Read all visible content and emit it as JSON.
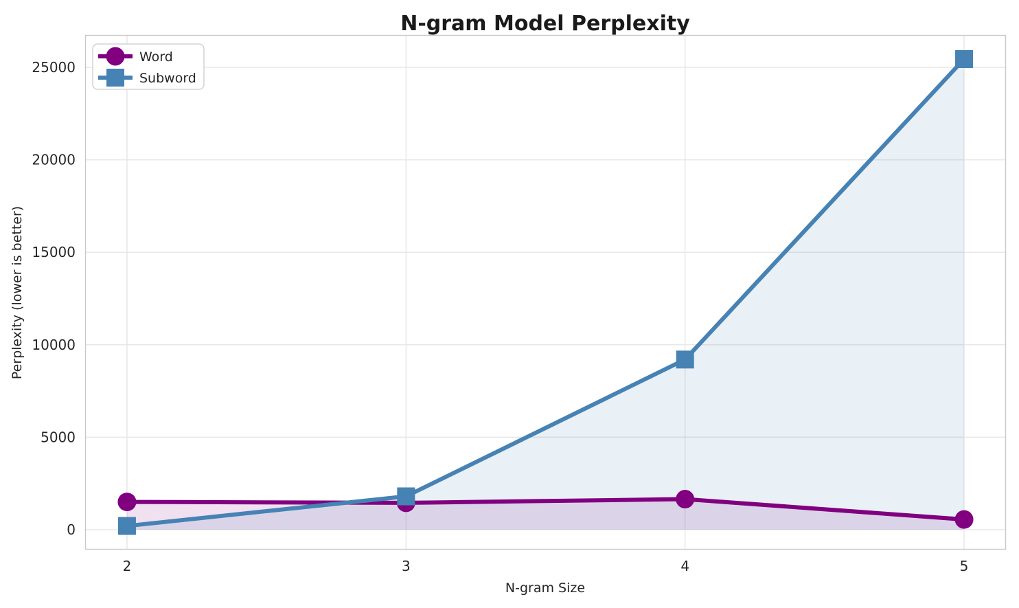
{
  "title": "N-gram Model Perplexity",
  "colors": {
    "word_series": "#800080",
    "subword_series": "#4682B4",
    "gridline": "#e6e6e6",
    "spine": "#c9c9c9",
    "text": "#262626",
    "background": "#ffffff",
    "legend_border": "#cccccc"
  },
  "chart_data": {
    "type": "line",
    "title": "N-gram Model Perplexity",
    "xlabel": "N-gram Size",
    "ylabel": "Perplexity (lower is better)",
    "x": [
      2,
      3,
      4,
      5
    ],
    "series": [
      {
        "name": "Word",
        "color": "#800080",
        "marker": "circle",
        "values": [
          1500,
          1450,
          1650,
          550
        ]
      },
      {
        "name": "Subword",
        "color": "#4682B4",
        "marker": "square",
        "values": [
          200,
          1800,
          9200,
          25450
        ]
      }
    ],
    "xticks": [
      2,
      3,
      4,
      5
    ],
    "yticks": [
      0,
      5000,
      10000,
      15000,
      20000,
      25000
    ],
    "xlim": [
      1.85,
      5.15
    ],
    "ylim": [
      -1080,
      26750
    ],
    "grid": true,
    "area_fill": true,
    "fill_alpha": 0.12,
    "fill_baseline": 0,
    "legend_position": "upper left"
  },
  "legend": {
    "items": [
      {
        "label": "Word"
      },
      {
        "label": "Subword"
      }
    ]
  }
}
